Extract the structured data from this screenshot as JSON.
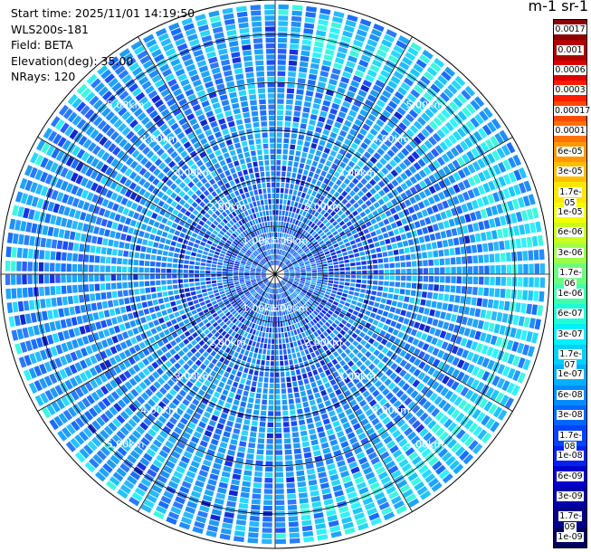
{
  "header": {
    "start_time": "Start time: 2025/11/01 14:19:50",
    "instrument": "WLS200s-181",
    "field": "Field: BETA",
    "elevation": "Elevation(deg): 35.00",
    "nrays": "NRays: 120"
  },
  "colorbar": {
    "title": "m-1 sr-1",
    "labels": [
      "0.0017",
      "0.001",
      "0.0006",
      "0.0003",
      "0.00017",
      "0.0001",
      "6e-05",
      "3e-05",
      "1.7e-05",
      "1e-05",
      "6e-06",
      "3e-06",
      "1.7e-06",
      "1e-06",
      "6e-07",
      "3e-07",
      "1.7e-07",
      "1e-07",
      "6e-08",
      "3e-08",
      "1.7e-08",
      "1e-08",
      "6e-09",
      "3e-09",
      "1.7e-09",
      "1e-09"
    ],
    "colors": [
      "#8b0000",
      "#b00000",
      "#dd0000",
      "#ff1a00",
      "#ff4a00",
      "#ff7200",
      "#ff9900",
      "#ffbe00",
      "#ffe600",
      "#f2ff00",
      "#c8ff1e",
      "#9cff4a",
      "#6dff80",
      "#42ffac",
      "#1effd6",
      "#00f0ff",
      "#00d0ff",
      "#00b0ff",
      "#008cff",
      "#0066ff",
      "#0044ff",
      "#0022ee",
      "#0000cc",
      "#0000aa",
      "#000088",
      "#00005e"
    ]
  },
  "chart_data": {
    "type": "heatmap",
    "projection": "polar-ppi",
    "field": "BETA",
    "units": "m-1 sr-1",
    "scale": "log",
    "value_range": [
      1e-09,
      0.0017
    ],
    "nrays": 120,
    "elevation_deg": 35.0,
    "max_range_km": 5.5,
    "range_rings_km": [
      1.0,
      2.0,
      3.0,
      4.0,
      5.0
    ],
    "ring_labels": [
      "1.00km",
      "2.00km",
      "3.00km",
      "4.00km",
      "5.00km"
    ],
    "dominant_values": [
      "1.7e-08",
      "3e-08",
      "6e-08",
      "1.7e-07"
    ],
    "notes": "Mostly 1.7e-08 to 6e-08 with a brighter ring near 4.5-5.2 km on the east side"
  }
}
